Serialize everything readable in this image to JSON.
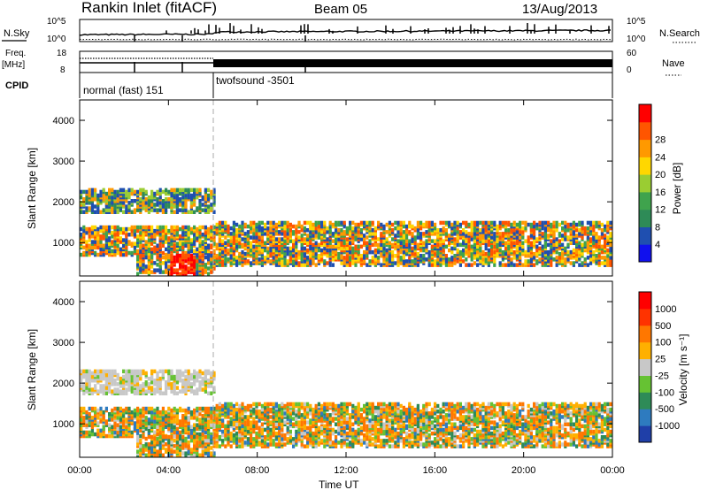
{
  "header": {
    "station": "Rankin Inlet (fitACF)",
    "beam": "Beam 05",
    "date": "13/Aug/2013"
  },
  "top_panels": {
    "nsky_label": "N.Sky",
    "nsky_ticks": [
      "10^5",
      "10^0"
    ],
    "nsearch_label": "N.Search",
    "nsearch_ticks": [
      "10^5",
      "10^0"
    ],
    "freq_label_line1": "Freq.",
    "freq_label_line2": "[MHz]",
    "freq_ticks": [
      "18",
      "8"
    ],
    "nave_label": "Nave",
    "nave_ticks": [
      "60",
      "0"
    ],
    "cpid_label": "CPID",
    "cpid_segments": [
      "normal (fast) 151",
      "twofsound -3501"
    ]
  },
  "chart_data": [
    {
      "type": "heatmap",
      "title": "",
      "ylabel": "Slant Range [km]",
      "xlabel": "",
      "yticks": [
        "1000",
        "2000",
        "3000",
        "4000"
      ],
      "ylim": [
        180,
        4500
      ],
      "xlim_hours": [
        0,
        24
      ],
      "colorbar_label": "Power [dB]",
      "colorbar_ticks": [
        "4",
        "8",
        "12",
        "16",
        "20",
        "24",
        "28"
      ],
      "colorbar_colors": [
        "#1010ee",
        "#1f4fb0",
        "#2e8b57",
        "#3fa34d",
        "#9acd32",
        "#ffd700",
        "#ff9900",
        "#ff5500",
        "#ff0000"
      ]
    },
    {
      "type": "heatmap",
      "title": "",
      "ylabel": "Slant Range [km]",
      "xlabel": "Time UT",
      "yticks": [
        "1000",
        "2000",
        "3000",
        "4000"
      ],
      "ylim": [
        180,
        4500
      ],
      "xticks": [
        "00:00",
        "04:00",
        "08:00",
        "12:00",
        "16:00",
        "20:00",
        "00:00"
      ],
      "colorbar_label": "Velocity [m s⁻¹]",
      "colorbar_ticks": [
        "1000",
        "500",
        "100",
        "25",
        "-25",
        "-100",
        "-500",
        "-1000"
      ],
      "colorbar_colors": [
        "#1f3fa8",
        "#2e7bbf",
        "#2e8b57",
        "#66c233",
        "#c8c8c8",
        "#ffb000",
        "#ff7700",
        "#ff3300",
        "#ff0000"
      ]
    }
  ]
}
